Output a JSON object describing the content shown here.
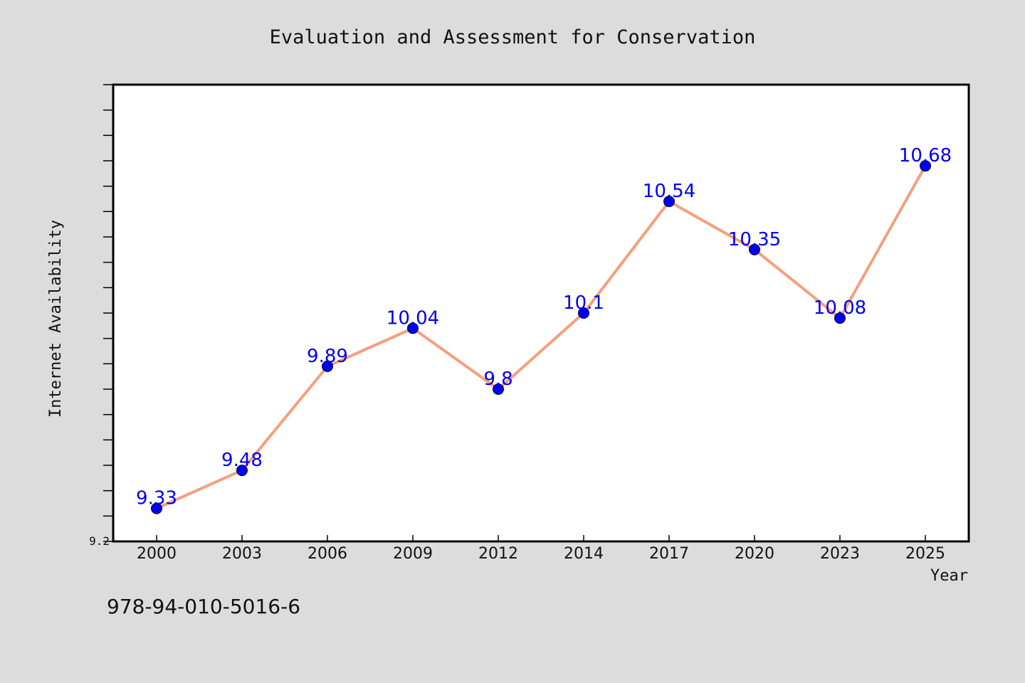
{
  "figure": {
    "background": "#dcdcdc",
    "footer_text": "978-94-010-5016-6"
  },
  "chart_data": {
    "type": "line",
    "title": "Evaluation and Assessment for Conservation",
    "xlabel": "Year",
    "ylabel": "Internet Availability",
    "categories": [
      "2000",
      "2003",
      "2006",
      "2009",
      "2012",
      "2014",
      "2017",
      "2020",
      "2023",
      "2025"
    ],
    "series": [
      {
        "values": [
          9.33,
          9.48,
          9.89,
          10.04,
          9.8,
          10.1,
          10.54,
          10.35,
          10.08,
          10.68
        ],
        "data_labels": [
          "9.33",
          "9.48",
          "9.89",
          "10.04",
          "9.8",
          "10.1",
          "10.54",
          "10.35",
          "10.08",
          "10.68"
        ],
        "line_color": "#f4a07c",
        "marker_color": "#0000ee",
        "label_color": "#0000ee"
      }
    ],
    "ylim": [
      9.2,
      11.0
    ],
    "y_minor_tick_step": 0.1,
    "yticks_labeled": [
      "9.2"
    ],
    "grid": false,
    "legend": "none",
    "plot_background": "#ffffff"
  }
}
